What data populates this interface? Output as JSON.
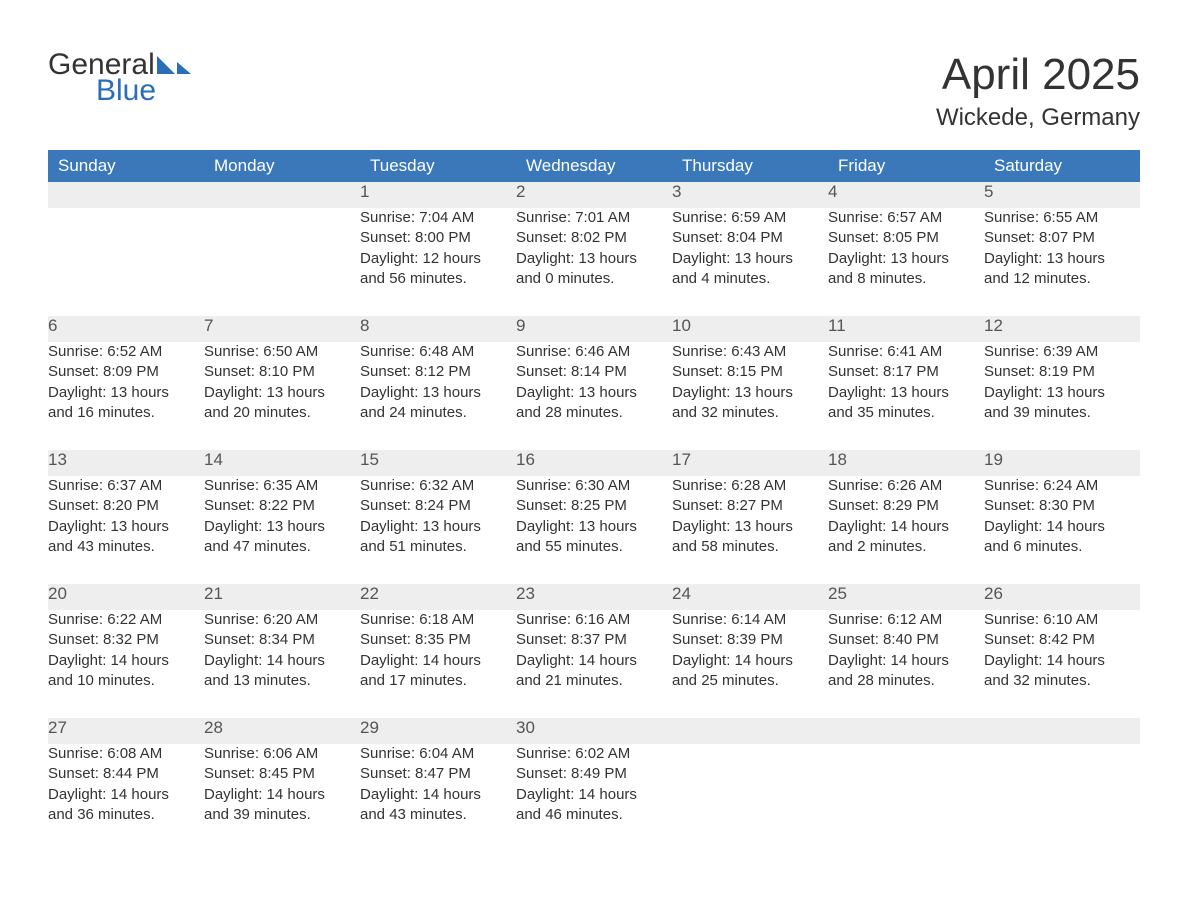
{
  "logo": {
    "text1": "General",
    "text2": "Blue",
    "icon_color": "#2a6eb8"
  },
  "title": "April 2025",
  "subtitle": "Wickede, Germany",
  "colors": {
    "header_bg": "#3a78b9",
    "header_text": "#ffffff",
    "daynum_bg": "#eeeeee",
    "border": "#3a78b9",
    "text": "#333333"
  },
  "weekdays": [
    "Sunday",
    "Monday",
    "Tuesday",
    "Wednesday",
    "Thursday",
    "Friday",
    "Saturday"
  ],
  "weeks": [
    [
      null,
      null,
      {
        "n": "1",
        "sr": "Sunrise: 7:04 AM",
        "ss": "Sunset: 8:00 PM",
        "d1": "Daylight: 12 hours",
        "d2": "and 56 minutes."
      },
      {
        "n": "2",
        "sr": "Sunrise: 7:01 AM",
        "ss": "Sunset: 8:02 PM",
        "d1": "Daylight: 13 hours",
        "d2": "and 0 minutes."
      },
      {
        "n": "3",
        "sr": "Sunrise: 6:59 AM",
        "ss": "Sunset: 8:04 PM",
        "d1": "Daylight: 13 hours",
        "d2": "and 4 minutes."
      },
      {
        "n": "4",
        "sr": "Sunrise: 6:57 AM",
        "ss": "Sunset: 8:05 PM",
        "d1": "Daylight: 13 hours",
        "d2": "and 8 minutes."
      },
      {
        "n": "5",
        "sr": "Sunrise: 6:55 AM",
        "ss": "Sunset: 8:07 PM",
        "d1": "Daylight: 13 hours",
        "d2": "and 12 minutes."
      }
    ],
    [
      {
        "n": "6",
        "sr": "Sunrise: 6:52 AM",
        "ss": "Sunset: 8:09 PM",
        "d1": "Daylight: 13 hours",
        "d2": "and 16 minutes."
      },
      {
        "n": "7",
        "sr": "Sunrise: 6:50 AM",
        "ss": "Sunset: 8:10 PM",
        "d1": "Daylight: 13 hours",
        "d2": "and 20 minutes."
      },
      {
        "n": "8",
        "sr": "Sunrise: 6:48 AM",
        "ss": "Sunset: 8:12 PM",
        "d1": "Daylight: 13 hours",
        "d2": "and 24 minutes."
      },
      {
        "n": "9",
        "sr": "Sunrise: 6:46 AM",
        "ss": "Sunset: 8:14 PM",
        "d1": "Daylight: 13 hours",
        "d2": "and 28 minutes."
      },
      {
        "n": "10",
        "sr": "Sunrise: 6:43 AM",
        "ss": "Sunset: 8:15 PM",
        "d1": "Daylight: 13 hours",
        "d2": "and 32 minutes."
      },
      {
        "n": "11",
        "sr": "Sunrise: 6:41 AM",
        "ss": "Sunset: 8:17 PM",
        "d1": "Daylight: 13 hours",
        "d2": "and 35 minutes."
      },
      {
        "n": "12",
        "sr": "Sunrise: 6:39 AM",
        "ss": "Sunset: 8:19 PM",
        "d1": "Daylight: 13 hours",
        "d2": "and 39 minutes."
      }
    ],
    [
      {
        "n": "13",
        "sr": "Sunrise: 6:37 AM",
        "ss": "Sunset: 8:20 PM",
        "d1": "Daylight: 13 hours",
        "d2": "and 43 minutes."
      },
      {
        "n": "14",
        "sr": "Sunrise: 6:35 AM",
        "ss": "Sunset: 8:22 PM",
        "d1": "Daylight: 13 hours",
        "d2": "and 47 minutes."
      },
      {
        "n": "15",
        "sr": "Sunrise: 6:32 AM",
        "ss": "Sunset: 8:24 PM",
        "d1": "Daylight: 13 hours",
        "d2": "and 51 minutes."
      },
      {
        "n": "16",
        "sr": "Sunrise: 6:30 AM",
        "ss": "Sunset: 8:25 PM",
        "d1": "Daylight: 13 hours",
        "d2": "and 55 minutes."
      },
      {
        "n": "17",
        "sr": "Sunrise: 6:28 AM",
        "ss": "Sunset: 8:27 PM",
        "d1": "Daylight: 13 hours",
        "d2": "and 58 minutes."
      },
      {
        "n": "18",
        "sr": "Sunrise: 6:26 AM",
        "ss": "Sunset: 8:29 PM",
        "d1": "Daylight: 14 hours",
        "d2": "and 2 minutes."
      },
      {
        "n": "19",
        "sr": "Sunrise: 6:24 AM",
        "ss": "Sunset: 8:30 PM",
        "d1": "Daylight: 14 hours",
        "d2": "and 6 minutes."
      }
    ],
    [
      {
        "n": "20",
        "sr": "Sunrise: 6:22 AM",
        "ss": "Sunset: 8:32 PM",
        "d1": "Daylight: 14 hours",
        "d2": "and 10 minutes."
      },
      {
        "n": "21",
        "sr": "Sunrise: 6:20 AM",
        "ss": "Sunset: 8:34 PM",
        "d1": "Daylight: 14 hours",
        "d2": "and 13 minutes."
      },
      {
        "n": "22",
        "sr": "Sunrise: 6:18 AM",
        "ss": "Sunset: 8:35 PM",
        "d1": "Daylight: 14 hours",
        "d2": "and 17 minutes."
      },
      {
        "n": "23",
        "sr": "Sunrise: 6:16 AM",
        "ss": "Sunset: 8:37 PM",
        "d1": "Daylight: 14 hours",
        "d2": "and 21 minutes."
      },
      {
        "n": "24",
        "sr": "Sunrise: 6:14 AM",
        "ss": "Sunset: 8:39 PM",
        "d1": "Daylight: 14 hours",
        "d2": "and 25 minutes."
      },
      {
        "n": "25",
        "sr": "Sunrise: 6:12 AM",
        "ss": "Sunset: 8:40 PM",
        "d1": "Daylight: 14 hours",
        "d2": "and 28 minutes."
      },
      {
        "n": "26",
        "sr": "Sunrise: 6:10 AM",
        "ss": "Sunset: 8:42 PM",
        "d1": "Daylight: 14 hours",
        "d2": "and 32 minutes."
      }
    ],
    [
      {
        "n": "27",
        "sr": "Sunrise: 6:08 AM",
        "ss": "Sunset: 8:44 PM",
        "d1": "Daylight: 14 hours",
        "d2": "and 36 minutes."
      },
      {
        "n": "28",
        "sr": "Sunrise: 6:06 AM",
        "ss": "Sunset: 8:45 PM",
        "d1": "Daylight: 14 hours",
        "d2": "and 39 minutes."
      },
      {
        "n": "29",
        "sr": "Sunrise: 6:04 AM",
        "ss": "Sunset: 8:47 PM",
        "d1": "Daylight: 14 hours",
        "d2": "and 43 minutes."
      },
      {
        "n": "30",
        "sr": "Sunrise: 6:02 AM",
        "ss": "Sunset: 8:49 PM",
        "d1": "Daylight: 14 hours",
        "d2": "and 46 minutes."
      },
      null,
      null,
      null
    ]
  ]
}
